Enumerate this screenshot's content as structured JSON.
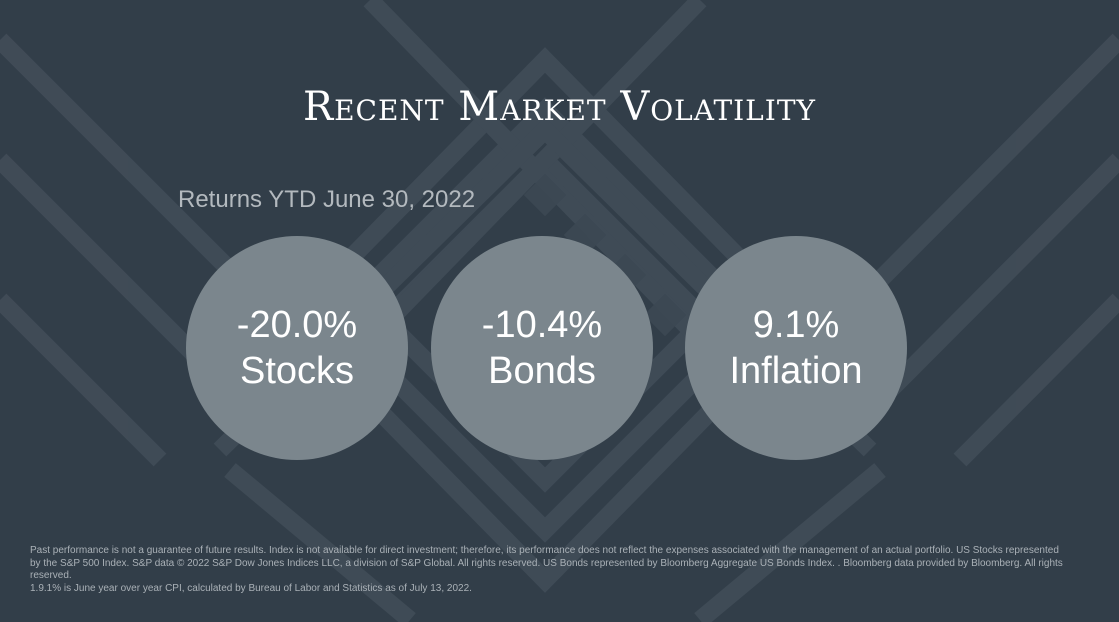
{
  "slide": {
    "title": "Recent Market Volatility",
    "subtitle": "Returns YTD June 30, 2022",
    "stats": [
      {
        "value": "-20.0%",
        "label": "Stocks"
      },
      {
        "value": "-10.4%",
        "label": "Bonds"
      },
      {
        "value": "9.1%",
        "label": "Inflation"
      }
    ],
    "footnote": {
      "disclaimer": "Past performance is not a guarantee of future results. Index is not available for direct investment; therefore, its performance does not reflect the expenses associated with the management of an actual portfolio. US Stocks represented by the S&P 500 Index. S&P data © 2022 S&P Dow Jones Indices LLC, a division of S&P Global. All rights reserved. US Bonds represented by Bloomberg Aggregate US Bonds Index. . Bloomberg data provided by Bloomberg. All rights reserved.",
      "note": "1.9.1% is June year over year CPI, calculated by Bureau of Labor and Statistics as of July 13, 2022."
    }
  },
  "colors": {
    "background": "#323e49",
    "circle_fill": "#7b868d",
    "pattern_stroke": "#4a5661"
  }
}
